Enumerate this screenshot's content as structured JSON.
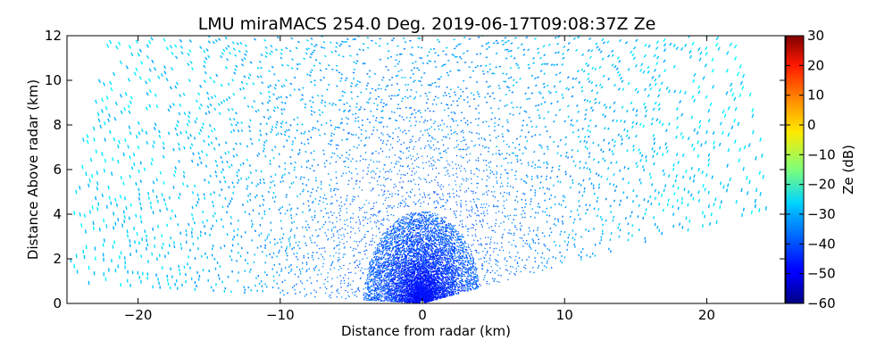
{
  "chart_data": {
    "type": "heatmap",
    "title": "LMU miraMACS 254.0 Deg. 2019-06-17T09:08:37Z  Ze",
    "xlabel": "Distance from radar (km)",
    "ylabel": "Distance Above radar  (km)",
    "xlim": [
      -25,
      25.5
    ],
    "ylim": [
      0,
      12
    ],
    "xticks": [
      {
        "value": -20,
        "label": "−20"
      },
      {
        "value": -10,
        "label": "−10"
      },
      {
        "value": 0,
        "label": "0"
      },
      {
        "value": 10,
        "label": "10"
      },
      {
        "value": 20,
        "label": "20"
      }
    ],
    "yticks": [
      {
        "value": 0,
        "label": "0"
      },
      {
        "value": 2,
        "label": "2"
      },
      {
        "value": 4,
        "label": "4"
      },
      {
        "value": 6,
        "label": "6"
      },
      {
        "value": 8,
        "label": "8"
      },
      {
        "value": 10,
        "label": "10"
      },
      {
        "value": 12,
        "label": "12"
      }
    ],
    "colorbar": {
      "label": "Ze (dB)",
      "range": [
        -60,
        30
      ],
      "colormap": "jet",
      "ticks": [
        {
          "value": 30,
          "label": "30"
        },
        {
          "value": 20,
          "label": "20"
        },
        {
          "value": 10,
          "label": "10"
        },
        {
          "value": 0,
          "label": "0"
        },
        {
          "value": -10,
          "label": "−10"
        },
        {
          "value": -20,
          "label": "−20"
        },
        {
          "value": -30,
          "label": "−30"
        },
        {
          "value": -40,
          "label": "−40"
        },
        {
          "value": -50,
          "label": "−50"
        },
        {
          "value": -60,
          "label": "−60"
        }
      ]
    },
    "scan": {
      "max_range_km": 25,
      "min_elevation_deg": 10,
      "max_elevation_deg": 178
    },
    "ze_profile": [
      {
        "range_km": 0.5,
        "ze_db": -48
      },
      {
        "range_km": 2,
        "ze_db": -44
      },
      {
        "range_km": 4,
        "ze_db": -40
      },
      {
        "range_km": 8,
        "ze_db": -37
      },
      {
        "range_km": 12,
        "ze_db": -34
      },
      {
        "range_km": 18,
        "ze_db": -31
      },
      {
        "range_km": 25,
        "ze_db": -29
      }
    ],
    "grid": false,
    "legend": "none"
  }
}
